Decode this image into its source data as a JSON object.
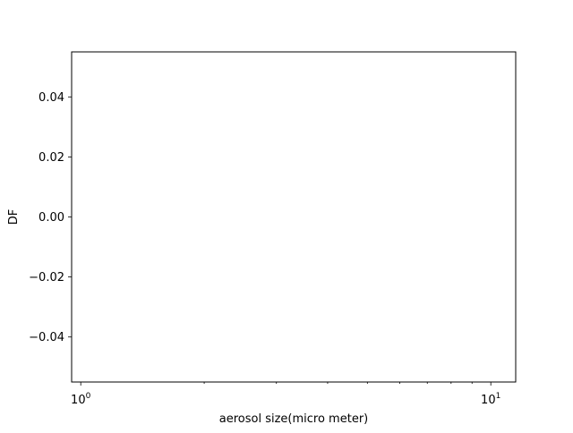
{
  "chart_data": {
    "type": "line",
    "title": "",
    "xlabel": "aerosol size(micro meter)",
    "ylabel": "DF",
    "x_scale": "log",
    "xlim": [
      0.95,
      11.5
    ],
    "ylim": [
      -0.055,
      0.055
    ],
    "x_ticks_major": [
      {
        "value": 1,
        "base": "10",
        "exp": "0"
      },
      {
        "value": 10,
        "base": "10",
        "exp": "1"
      }
    ],
    "x_ticks_minor": [
      2,
      3,
      4,
      5,
      6,
      7,
      8,
      9
    ],
    "y_ticks": [
      {
        "value": 0.04,
        "label": "0.04"
      },
      {
        "value": 0.02,
        "label": "0.02"
      },
      {
        "value": 0.0,
        "label": "0.00"
      },
      {
        "value": -0.02,
        "label": "−0.02"
      },
      {
        "value": -0.04,
        "label": "−0.04"
      }
    ],
    "series": [],
    "grid": false,
    "legend": "none"
  }
}
